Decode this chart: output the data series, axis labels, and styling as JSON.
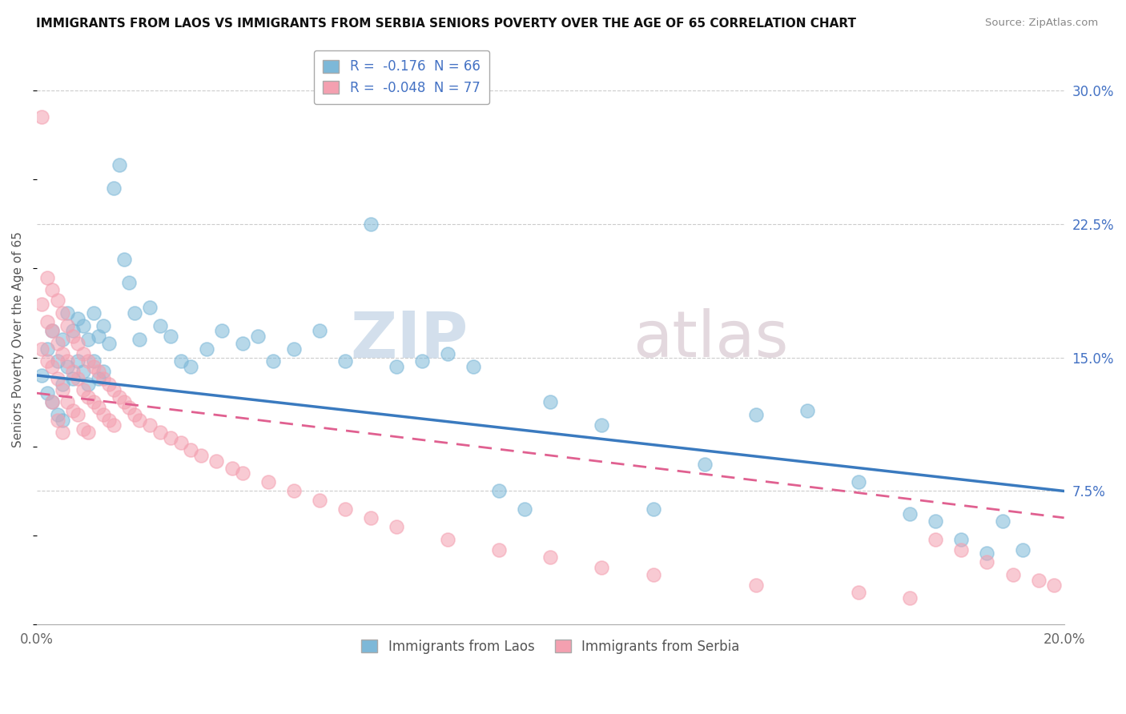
{
  "title": "IMMIGRANTS FROM LAOS VS IMMIGRANTS FROM SERBIA SENIORS POVERTY OVER THE AGE OF 65 CORRELATION CHART",
  "source": "Source: ZipAtlas.com",
  "ylabel": "Seniors Poverty Over the Age of 65",
  "xlim": [
    0.0,
    0.2
  ],
  "ylim": [
    0.0,
    0.32
  ],
  "xticks": [
    0.0,
    0.05,
    0.1,
    0.15,
    0.2
  ],
  "xticklabels": [
    "0.0%",
    "",
    "",
    "",
    "20.0%"
  ],
  "yticks_right": [
    0.0,
    0.075,
    0.15,
    0.225,
    0.3
  ],
  "yticklabels_right": [
    "",
    "7.5%",
    "15.0%",
    "22.5%",
    "30.0%"
  ],
  "laos_color": "#7db8d8",
  "serbia_color": "#f4a0b0",
  "laos_line_color": "#3a7abf",
  "serbia_line_color": "#e06090",
  "laos_R": -0.176,
  "laos_N": 66,
  "serbia_R": -0.048,
  "serbia_N": 77,
  "watermark_zip": "ZIP",
  "watermark_atlas": "atlas",
  "legend_label_laos": "Immigrants from Laos",
  "legend_label_serbia": "Immigrants from Serbia",
  "laos_x": [
    0.001,
    0.002,
    0.002,
    0.003,
    0.003,
    0.004,
    0.004,
    0.005,
    0.005,
    0.005,
    0.006,
    0.006,
    0.007,
    0.007,
    0.008,
    0.008,
    0.009,
    0.009,
    0.01,
    0.01,
    0.011,
    0.011,
    0.012,
    0.012,
    0.013,
    0.013,
    0.014,
    0.015,
    0.016,
    0.017,
    0.018,
    0.019,
    0.02,
    0.022,
    0.024,
    0.026,
    0.028,
    0.03,
    0.033,
    0.036,
    0.04,
    0.043,
    0.046,
    0.05,
    0.055,
    0.06,
    0.065,
    0.07,
    0.075,
    0.08,
    0.085,
    0.09,
    0.095,
    0.1,
    0.11,
    0.12,
    0.13,
    0.14,
    0.15,
    0.16,
    0.17,
    0.175,
    0.18,
    0.185,
    0.188,
    0.192
  ],
  "laos_y": [
    0.14,
    0.155,
    0.13,
    0.165,
    0.125,
    0.148,
    0.118,
    0.16,
    0.135,
    0.115,
    0.175,
    0.145,
    0.165,
    0.138,
    0.172,
    0.148,
    0.168,
    0.142,
    0.16,
    0.135,
    0.175,
    0.148,
    0.162,
    0.138,
    0.168,
    0.142,
    0.158,
    0.245,
    0.258,
    0.205,
    0.192,
    0.175,
    0.16,
    0.178,
    0.168,
    0.162,
    0.148,
    0.145,
    0.155,
    0.165,
    0.158,
    0.162,
    0.148,
    0.155,
    0.165,
    0.148,
    0.225,
    0.145,
    0.148,
    0.152,
    0.145,
    0.075,
    0.065,
    0.125,
    0.112,
    0.065,
    0.09,
    0.118,
    0.12,
    0.08,
    0.062,
    0.058,
    0.048,
    0.04,
    0.058,
    0.042
  ],
  "serbia_x": [
    0.001,
    0.001,
    0.001,
    0.002,
    0.002,
    0.002,
    0.003,
    0.003,
    0.003,
    0.003,
    0.004,
    0.004,
    0.004,
    0.004,
    0.005,
    0.005,
    0.005,
    0.005,
    0.006,
    0.006,
    0.006,
    0.007,
    0.007,
    0.007,
    0.008,
    0.008,
    0.008,
    0.009,
    0.009,
    0.009,
    0.01,
    0.01,
    0.01,
    0.011,
    0.011,
    0.012,
    0.012,
    0.013,
    0.013,
    0.014,
    0.014,
    0.015,
    0.015,
    0.016,
    0.017,
    0.018,
    0.019,
    0.02,
    0.022,
    0.024,
    0.026,
    0.028,
    0.03,
    0.032,
    0.035,
    0.038,
    0.04,
    0.045,
    0.05,
    0.055,
    0.06,
    0.065,
    0.07,
    0.08,
    0.09,
    0.1,
    0.11,
    0.12,
    0.14,
    0.16,
    0.17,
    0.175,
    0.18,
    0.185,
    0.19,
    0.195,
    0.198
  ],
  "serbia_y": [
    0.285,
    0.18,
    0.155,
    0.195,
    0.17,
    0.148,
    0.188,
    0.165,
    0.145,
    0.125,
    0.182,
    0.158,
    0.138,
    0.115,
    0.175,
    0.152,
    0.132,
    0.108,
    0.168,
    0.148,
    0.125,
    0.162,
    0.142,
    0.12,
    0.158,
    0.138,
    0.118,
    0.152,
    0.132,
    0.11,
    0.148,
    0.128,
    0.108,
    0.145,
    0.125,
    0.142,
    0.122,
    0.138,
    0.118,
    0.135,
    0.115,
    0.132,
    0.112,
    0.128,
    0.125,
    0.122,
    0.118,
    0.115,
    0.112,
    0.108,
    0.105,
    0.102,
    0.098,
    0.095,
    0.092,
    0.088,
    0.085,
    0.08,
    0.075,
    0.07,
    0.065,
    0.06,
    0.055,
    0.048,
    0.042,
    0.038,
    0.032,
    0.028,
    0.022,
    0.018,
    0.015,
    0.048,
    0.042,
    0.035,
    0.028,
    0.025,
    0.022
  ]
}
